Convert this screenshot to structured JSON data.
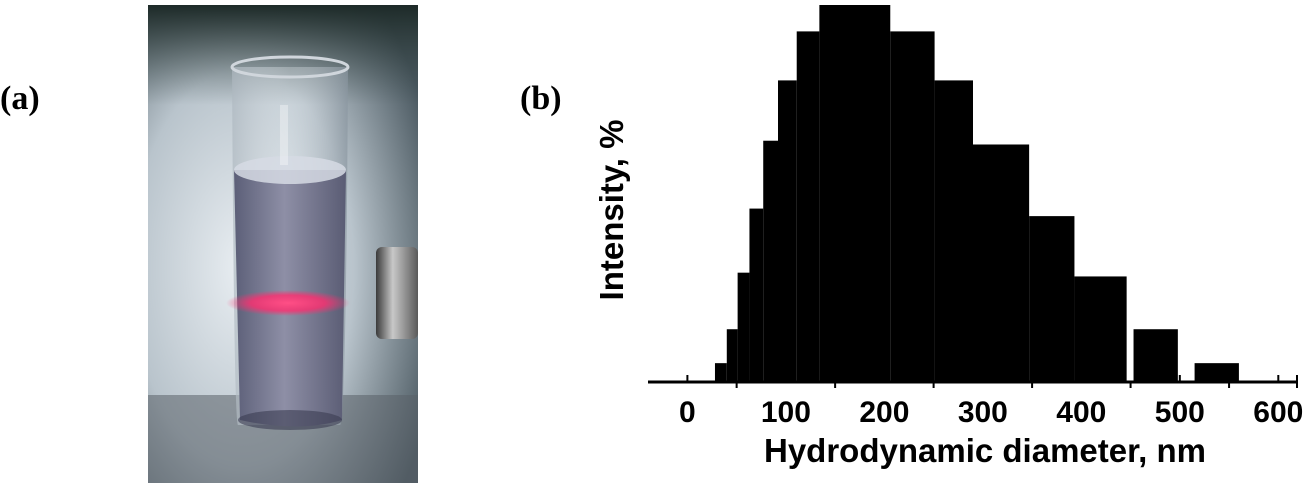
{
  "figure": {
    "panel_a_label": "(a)",
    "panel_b_label": "(b)"
  },
  "colors": {
    "bars": "#000000",
    "laser_beam": "#ff2d6f"
  },
  "chart_data": {
    "type": "bar",
    "title": "",
    "xlabel": "Hydrodynamic diameter, nm",
    "ylabel": "Intensity, %",
    "xlim": [
      -40,
      620
    ],
    "ylim": [
      0,
      100
    ],
    "xticks": [
      0,
      100,
      200,
      300,
      400,
      500,
      600
    ],
    "grid": false,
    "bins": [
      {
        "from": 28,
        "to": 40,
        "value": 5
      },
      {
        "from": 40,
        "to": 51,
        "value": 14
      },
      {
        "from": 51,
        "to": 63,
        "value": 29
      },
      {
        "from": 63,
        "to": 77,
        "value": 46
      },
      {
        "from": 77,
        "to": 92,
        "value": 64
      },
      {
        "from": 92,
        "to": 111,
        "value": 80
      },
      {
        "from": 111,
        "to": 134,
        "value": 93
      },
      {
        "from": 134,
        "to": 206,
        "value": 100
      },
      {
        "from": 206,
        "to": 251,
        "value": 93
      },
      {
        "from": 251,
        "to": 290,
        "value": 80
      },
      {
        "from": 290,
        "to": 347,
        "value": 63
      },
      {
        "from": 347,
        "to": 393,
        "value": 44
      },
      {
        "from": 393,
        "to": 446,
        "value": 28
      },
      {
        "from": 453,
        "to": 498,
        "value": 14
      },
      {
        "from": 515,
        "to": 560,
        "value": 5
      }
    ]
  }
}
